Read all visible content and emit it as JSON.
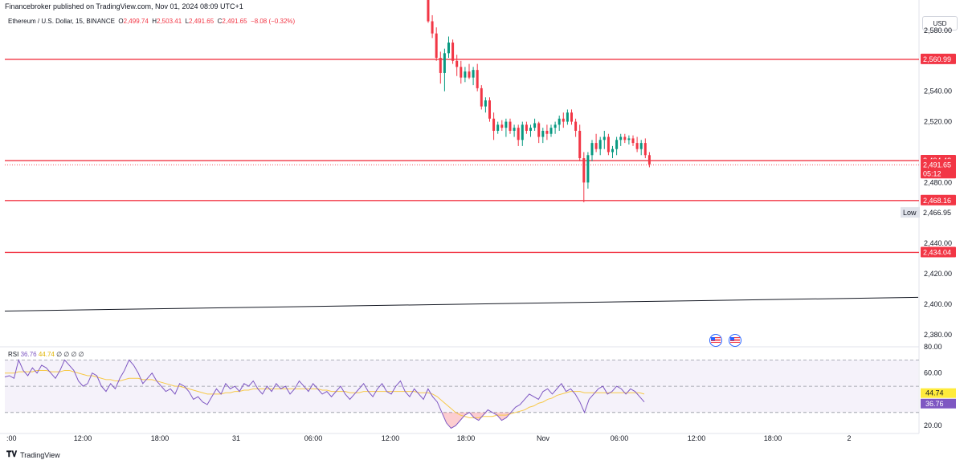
{
  "header": {
    "publisher": "Financebroker published on TradingView.com, Nov 01, 2024 08:09 UTC+1"
  },
  "symbol": {
    "name": "Ethereum / U.S. Dollar, 15, BINANCE",
    "o_label": "O",
    "o": "2,499.74",
    "h_label": "H",
    "h": "2,503.41",
    "l_label": "L",
    "l": "2,491.65",
    "c_label": "C",
    "c": "2,491.65",
    "change": "−8.08 (−0.32%)"
  },
  "currency": "USD",
  "footer": {
    "brand": "TradingView"
  },
  "icons": {
    "flag1": "us-flag-icon",
    "flag2": "us-flag-icon"
  },
  "colors": {
    "down": "#f23645",
    "up": "#089981",
    "level": "#f23645",
    "rsi": "#7e57c2",
    "rsi_ma": "#f7c948",
    "label_low": "#e0e3eb"
  },
  "chart_data": {
    "type": "candlestick",
    "price_axis": {
      "ticks": [
        "2,580.00",
        "2,540.00",
        "2,520.00",
        "2,480.00",
        "2,440.00",
        "2,420.00",
        "2,400.00",
        "2,380.00"
      ],
      "tick_values": [
        2580,
        2540,
        2520,
        2480,
        2440,
        2420,
        2400,
        2380
      ],
      "range": [
        2372,
        2600
      ]
    },
    "time_axis": {
      "labels": [
        ":00",
        "12:00",
        "18:00",
        "31",
        "06:00",
        "12:00",
        "18:00",
        "Nov",
        "06:00",
        "12:00",
        "18:00",
        "2"
      ]
    },
    "horizontal_levels": [
      2560.99,
      2494.42,
      2468.16,
      2434.04
    ],
    "level_labels": [
      "2,560.99",
      "2,494.42",
      "2,468.16",
      "2,434.04"
    ],
    "price_badges": {
      "current": "2,491.65",
      "countdown": "05:12",
      "low_label": "Low",
      "low_value": "2,466.95"
    },
    "trendline": {
      "start": 2395.5,
      "end": 2404.5
    },
    "candles": [
      [
        2600,
        2602,
        2585,
        2586
      ],
      [
        2586,
        2590,
        2575,
        2578
      ],
      [
        2578,
        2582,
        2560,
        2562
      ],
      [
        2562,
        2566,
        2545,
        2552
      ],
      [
        2552,
        2568,
        2540,
        2565
      ],
      [
        2565,
        2576,
        2562,
        2572
      ],
      [
        2572,
        2574,
        2558,
        2560
      ],
      [
        2560,
        2564,
        2550,
        2556
      ],
      [
        2556,
        2560,
        2545,
        2549
      ],
      [
        2549,
        2556,
        2546,
        2553
      ],
      [
        2553,
        2558,
        2548,
        2549
      ],
      [
        2549,
        2556,
        2544,
        2554
      ],
      [
        2554,
        2558,
        2540,
        2542
      ],
      [
        2542,
        2544,
        2528,
        2530
      ],
      [
        2530,
        2536,
        2526,
        2534
      ],
      [
        2534,
        2536,
        2520,
        2522
      ],
      [
        2522,
        2526,
        2508,
        2514
      ],
      [
        2514,
        2520,
        2512,
        2518
      ],
      [
        2518,
        2521,
        2514,
        2516
      ],
      [
        2516,
        2522,
        2510,
        2520
      ],
      [
        2520,
        2522,
        2512,
        2514
      ],
      [
        2514,
        2518,
        2510,
        2516
      ],
      [
        2516,
        2518,
        2504,
        2508
      ],
      [
        2508,
        2520,
        2504,
        2518
      ],
      [
        2518,
        2520,
        2512,
        2514
      ],
      [
        2514,
        2518,
        2510,
        2516
      ],
      [
        2516,
        2522,
        2514,
        2519
      ],
      [
        2519,
        2520,
        2506,
        2510
      ],
      [
        2510,
        2516,
        2506,
        2514
      ],
      [
        2514,
        2518,
        2508,
        2512
      ],
      [
        2512,
        2518,
        2510,
        2516
      ],
      [
        2516,
        2520,
        2512,
        2518
      ],
      [
        2518,
        2524,
        2514,
        2522
      ],
      [
        2522,
        2526,
        2516,
        2520
      ],
      [
        2520,
        2528,
        2518,
        2526
      ],
      [
        2526,
        2528,
        2518,
        2520
      ],
      [
        2520,
        2522,
        2510,
        2514
      ],
      [
        2514,
        2518,
        2494,
        2496
      ],
      [
        2496,
        2500,
        2467,
        2480
      ],
      [
        2480,
        2500,
        2476,
        2498
      ],
      [
        2498,
        2508,
        2494,
        2506
      ],
      [
        2506,
        2512,
        2500,
        2502
      ],
      [
        2502,
        2510,
        2498,
        2508
      ],
      [
        2508,
        2514,
        2502,
        2510
      ],
      [
        2510,
        2512,
        2498,
        2500
      ],
      [
        2500,
        2504,
        2496,
        2502
      ],
      [
        2502,
        2510,
        2498,
        2508
      ],
      [
        2508,
        2512,
        2504,
        2510
      ],
      [
        2510,
        2512,
        2506,
        2508
      ],
      [
        2508,
        2511,
        2505,
        2509
      ],
      [
        2509,
        2511,
        2504,
        2506
      ],
      [
        2506,
        2510,
        2500,
        2502
      ],
      [
        2502,
        2508,
        2498,
        2506
      ],
      [
        2506,
        2509,
        2496,
        2498
      ],
      [
        2498,
        2500,
        2490,
        2492
      ]
    ],
    "rsi": {
      "label": "RSI",
      "value": "36.76",
      "ma_value": "44.74",
      "extra": "∅ ∅ ∅ ∅",
      "axis_ticks": [
        "80.00",
        "60.00",
        "20.00"
      ],
      "band": [
        30,
        70
      ],
      "range": [
        14,
        80
      ],
      "series": [
        57,
        58,
        56,
        70,
        62,
        58,
        64,
        60,
        66,
        64,
        60,
        56,
        62,
        70,
        66,
        62,
        54,
        50,
        52,
        60,
        58,
        50,
        46,
        52,
        48,
        56,
        62,
        70,
        66,
        60,
        52,
        56,
        60,
        54,
        50,
        46,
        48,
        44,
        52,
        50,
        46,
        40,
        42,
        38,
        36,
        42,
        48,
        44,
        52,
        48,
        50,
        46,
        52,
        50,
        54,
        48,
        44,
        50,
        46,
        52,
        48,
        50,
        44,
        48,
        54,
        50,
        46,
        52,
        48,
        44,
        46,
        42,
        46,
        50,
        44,
        40,
        44,
        48,
        52,
        46,
        42,
        48,
        52,
        46,
        44,
        50,
        54,
        46,
        42,
        48,
        44,
        40,
        48,
        42,
        38,
        30,
        22,
        18,
        20,
        24,
        28,
        30,
        26,
        24,
        28,
        32,
        30,
        28,
        24,
        26,
        30,
        34,
        36,
        40,
        44,
        42,
        40,
        46,
        48,
        44,
        48,
        52,
        46,
        48,
        44,
        38,
        30,
        40,
        44,
        48,
        50,
        44,
        46,
        50,
        48,
        44,
        48,
        46,
        42,
        38
      ],
      "ma_series": [
        60,
        60,
        60,
        61,
        61,
        61,
        61,
        62,
        62,
        62,
        61,
        61,
        61,
        62,
        62,
        61,
        60,
        59,
        58,
        58,
        57,
        56,
        55,
        55,
        54,
        54,
        55,
        56,
        56,
        56,
        55,
        55,
        55,
        54,
        53,
        52,
        51,
        50,
        50,
        49,
        48,
        47,
        46,
        45,
        44,
        44,
        44,
        44,
        45,
        45,
        46,
        46,
        47,
        47,
        48,
        48,
        48,
        48,
        48,
        48,
        48,
        48,
        48,
        48,
        48,
        48,
        48,
        48,
        48,
        47,
        47,
        46,
        46,
        46,
        46,
        45,
        45,
        45,
        46,
        46,
        46,
        46,
        46,
        46,
        46,
        46,
        46,
        46,
        46,
        46,
        45,
        45,
        45,
        44,
        42,
        39,
        36,
        33,
        30,
        28,
        27,
        26,
        26,
        26,
        27,
        27,
        27,
        28,
        28,
        28,
        29,
        30,
        31,
        32,
        34,
        35,
        37,
        38,
        40,
        41,
        43,
        44,
        45,
        46,
        46,
        46,
        45,
        45,
        45,
        45,
        45,
        45,
        45,
        45,
        45,
        45,
        45,
        45,
        45,
        44
      ]
    }
  }
}
